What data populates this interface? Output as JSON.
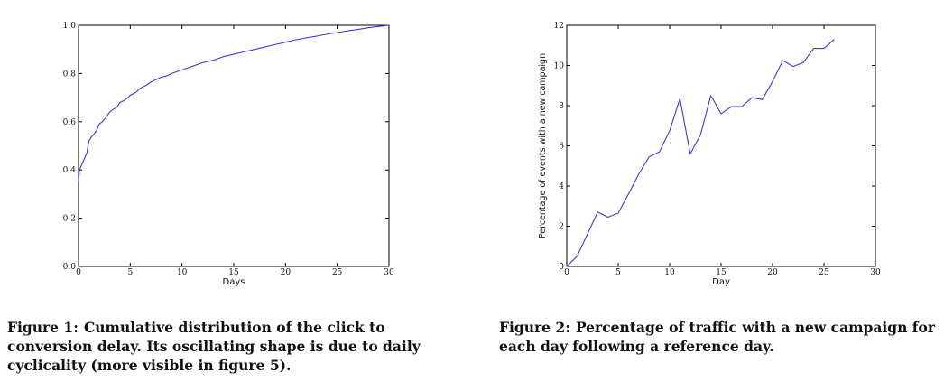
{
  "figures": [
    {
      "caption_label": "Figure 1:",
      "caption_text": "Cumulative distribution of the click to conversion delay. Its oscillating shape is due to daily cyclicality (more visible in figure 5)."
    },
    {
      "caption_label": "Figure 2:",
      "caption_text": "Percentage of traffic with a new campaign for each day following a reference day."
    }
  ],
  "colors": {
    "line": "#3b3bd6",
    "axis": "#000000"
  },
  "chart_data": [
    {
      "type": "line",
      "title": "",
      "xlabel": "Days",
      "ylabel": "",
      "xlim": [
        0,
        30
      ],
      "ylim": [
        0.0,
        1.0
      ],
      "xticks": [
        0,
        5,
        10,
        15,
        20,
        25,
        30
      ],
      "xtick_labels": [
        "0",
        "5",
        "10",
        "15",
        "20",
        "25",
        "30"
      ],
      "yticks": [
        0.0,
        0.2,
        0.4,
        0.6,
        0.8,
        1.0
      ],
      "ytick_labels": [
        "0.0",
        "0.2",
        "0.4",
        "0.6",
        "0.8",
        "1.0"
      ],
      "grid": false,
      "series": [
        {
          "x": [
            0,
            0.1,
            0.5,
            0.8,
            1.0,
            1.3,
            1.7,
            2.0,
            2.3,
            2.7,
            3.0,
            3.3,
            3.7,
            4.0,
            4.5,
            5.0,
            5.5,
            6.0,
            6.5,
            7.0,
            7.5,
            8.0,
            8.5,
            9.0,
            10.0,
            11.0,
            12.0,
            13.0,
            14.0,
            15.0,
            16.0,
            17.0,
            18.0,
            19.0,
            20.0,
            21.0,
            22.0,
            23.0,
            24.0,
            25.0,
            26.0,
            27.0,
            28.0,
            29.0,
            30.0
          ],
          "values": [
            0.35,
            0.4,
            0.44,
            0.47,
            0.52,
            0.54,
            0.56,
            0.59,
            0.6,
            0.62,
            0.64,
            0.65,
            0.66,
            0.68,
            0.69,
            0.71,
            0.72,
            0.74,
            0.75,
            0.765,
            0.775,
            0.785,
            0.79,
            0.8,
            0.815,
            0.83,
            0.845,
            0.855,
            0.87,
            0.88,
            0.89,
            0.9,
            0.91,
            0.92,
            0.93,
            0.94,
            0.948,
            0.955,
            0.963,
            0.97,
            0.977,
            0.983,
            0.99,
            0.995,
            1.0
          ]
        }
      ]
    },
    {
      "type": "line",
      "title": "",
      "xlabel": "Day",
      "ylabel": "Percentage of events with a new campaign",
      "xlim": [
        0,
        30
      ],
      "ylim": [
        0,
        12
      ],
      "xticks": [
        0,
        5,
        10,
        15,
        20,
        25,
        30
      ],
      "xtick_labels": [
        "0",
        "5",
        "10",
        "15",
        "20",
        "25",
        "30"
      ],
      "yticks": [
        0,
        2,
        4,
        6,
        8,
        10,
        12
      ],
      "ytick_labels": [
        "0",
        "2",
        "4",
        "6",
        "8",
        "10",
        "12"
      ],
      "grid": false,
      "series": [
        {
          "x": [
            0,
            1,
            2,
            3,
            4,
            5,
            6,
            7,
            8,
            9,
            10,
            11,
            12,
            13,
            14,
            15,
            16,
            17,
            18,
            19,
            20,
            21,
            22,
            23,
            24,
            25,
            26
          ],
          "values": [
            0.0,
            0.5,
            1.6,
            2.7,
            2.45,
            2.65,
            3.6,
            4.6,
            5.45,
            5.7,
            6.75,
            8.35,
            5.6,
            6.55,
            8.5,
            7.6,
            7.95,
            7.95,
            8.4,
            8.3,
            9.2,
            10.25,
            9.95,
            10.15,
            10.85,
            10.85,
            11.3
          ]
        }
      ]
    }
  ]
}
